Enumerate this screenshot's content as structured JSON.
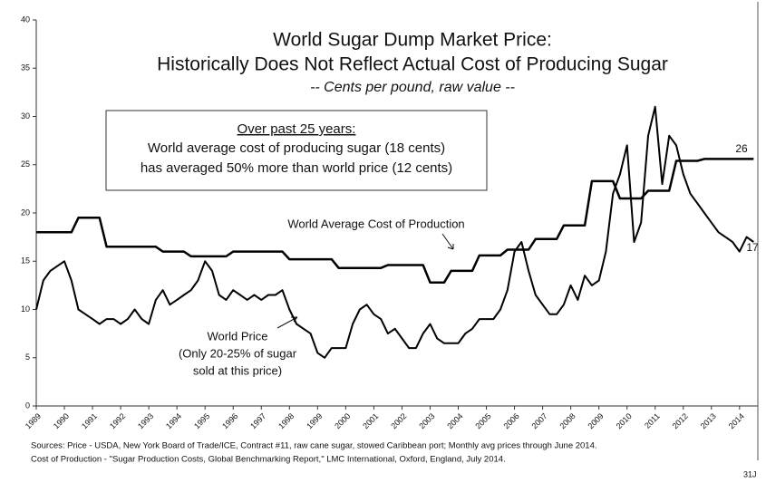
{
  "chart_data": {
    "type": "line",
    "title": "World Sugar Dump Market Price:",
    "title_line2": "Historically Does Not Reflect Actual Cost of Producing Sugar",
    "subtitle": "-- Cents per pound, raw value --",
    "box_heading": "Over past 25 years:",
    "box_lines": [
      "World average cost of producing sugar (18 cents)",
      "has averaged 50% more than world price (12 cents)"
    ],
    "annotations": [
      "World Average Cost of  Production",
      "World Price",
      "(Only 20-25% of sugar",
      "sold at this price)"
    ],
    "end_labels": [
      "26",
      "17"
    ],
    "sources": [
      "Sources: Price - USDA, New York Board of Trade/ICE, Contract #11, raw cane sugar, stowed Caribbean port; Monthly avg prices through June 2014.",
      "Cost of Production - \"Sugar Production Costs, Global Benchmarking Report,\" LMC International, Oxford, England, July 2014."
    ],
    "page_number": "31J",
    "x": [
      1989,
      1989.25,
      1989.5,
      1989.75,
      1990,
      1990.25,
      1990.5,
      1990.75,
      1991,
      1991.25,
      1991.5,
      1991.75,
      1992,
      1992.25,
      1992.5,
      1992.75,
      1993,
      1993.25,
      1993.5,
      1993.75,
      1994,
      1994.25,
      1994.5,
      1994.75,
      1995,
      1995.25,
      1995.5,
      1995.75,
      1996,
      1996.25,
      1996.5,
      1996.75,
      1997,
      1997.25,
      1997.5,
      1997.75,
      1998,
      1998.25,
      1998.5,
      1998.75,
      1999,
      1999.25,
      1999.5,
      1999.75,
      2000,
      2000.25,
      2000.5,
      2000.75,
      2001,
      2001.25,
      2001.5,
      2001.75,
      2002,
      2002.25,
      2002.5,
      2002.75,
      2003,
      2003.25,
      2003.5,
      2003.75,
      2004,
      2004.25,
      2004.5,
      2004.75,
      2005,
      2005.25,
      2005.5,
      2005.75,
      2006,
      2006.25,
      2006.5,
      2006.75,
      2007,
      2007.25,
      2007.5,
      2007.75,
      2008,
      2008.25,
      2008.5,
      2008.75,
      2009,
      2009.25,
      2009.5,
      2009.75,
      2010,
      2010.25,
      2010.5,
      2010.75,
      2011,
      2011.25,
      2011.5,
      2011.75,
      2012,
      2012.25,
      2012.5,
      2012.75,
      2013,
      2013.25,
      2013.5,
      2013.75,
      2014,
      2014.25,
      2014.5
    ],
    "series": [
      {
        "name": "World Price",
        "color": "#000000",
        "width": 2,
        "values": [
          10,
          13,
          14,
          14.5,
          15,
          13,
          10,
          9.5,
          9,
          8.5,
          9,
          9,
          8.5,
          9,
          10,
          9,
          8.5,
          11,
          12,
          10.5,
          11,
          11.5,
          12,
          13,
          15,
          14,
          11.5,
          11,
          12,
          11.5,
          11,
          11.5,
          11,
          11.5,
          11.5,
          12,
          10,
          8.5,
          8,
          7.5,
          5.5,
          5,
          6,
          6,
          6,
          8.5,
          10,
          10.5,
          9.5,
          9,
          7.5,
          8,
          7,
          6,
          6,
          7.5,
          8.5,
          7,
          6.5,
          6.5,
          6.5,
          7.5,
          8,
          9,
          9,
          9,
          10,
          12,
          16,
          17,
          14,
          11.5,
          10.5,
          9.5,
          9.5,
          10.5,
          12.5,
          11,
          13.5,
          12.5,
          13,
          16,
          22,
          24,
          27,
          17,
          19,
          28,
          31,
          23,
          28,
          27,
          24,
          22,
          21,
          20,
          19,
          18,
          17.5,
          17,
          16,
          17.5,
          17
        ]
      },
      {
        "name": "World Average Cost of Production",
        "color": "#000000",
        "width": 2.5,
        "values": [
          18,
          18,
          18,
          18,
          18,
          18,
          19.5,
          19.5,
          19.5,
          19.5,
          16.5,
          16.5,
          16.5,
          16.5,
          16.5,
          16.5,
          16.5,
          16.5,
          16,
          16,
          16,
          16,
          15.5,
          15.5,
          15.5,
          15.5,
          15.5,
          15.5,
          16,
          16,
          16,
          16,
          16,
          16,
          16,
          16,
          15.2,
          15.2,
          15.2,
          15.2,
          15.2,
          15.2,
          15.2,
          14.3,
          14.3,
          14.3,
          14.3,
          14.3,
          14.3,
          14.3,
          14.6,
          14.6,
          14.6,
          14.6,
          14.6,
          14.6,
          12.8,
          12.8,
          12.8,
          14,
          14,
          14,
          14,
          15.6,
          15.6,
          15.6,
          15.6,
          16.2,
          16.2,
          16.2,
          16.2,
          17.3,
          17.3,
          17.3,
          17.3,
          18.7,
          18.7,
          18.7,
          18.7,
          23.3,
          23.3,
          23.3,
          23.3,
          21.5,
          21.5,
          21.5,
          21.5,
          22.3,
          22.3,
          22.3,
          22.3,
          25.4,
          25.4,
          25.4,
          25.4,
          25.6,
          25.6,
          25.6,
          25.6,
          25.6,
          25.6,
          25.6,
          25.6
        ]
      }
    ],
    "xlim": [
      1989,
      2014.65
    ],
    "xticks": [
      1989,
      1990,
      1991,
      1992,
      1993,
      1994,
      1995,
      1996,
      1997,
      1998,
      1999,
      2000,
      2001,
      2002,
      2003,
      2004,
      2005,
      2006,
      2007,
      2008,
      2009,
      2010,
      2011,
      2012,
      2013,
      2014
    ],
    "ylim": [
      0,
      40
    ],
    "yticks": [
      0,
      5,
      10,
      15,
      20,
      25,
      30,
      35,
      40
    ],
    "grid": false
  }
}
